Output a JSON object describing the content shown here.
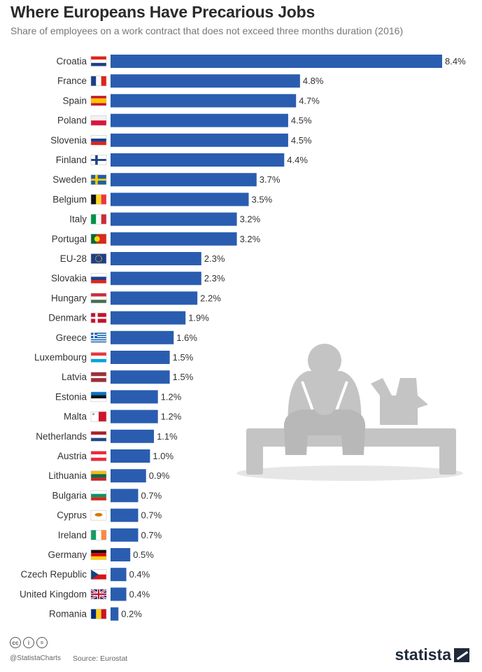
{
  "title": "Where Europeans Have Precarious Jobs",
  "subtitle": "Share of employees on a work contract that does not exceed three months duration (2016)",
  "footer": {
    "cc_icons": [
      "cc",
      "i",
      "="
    ],
    "handle": "@StatistaCharts",
    "source": "Source: Eurostat",
    "brand": "statista"
  },
  "colors": {
    "bar": "#2a5db0",
    "illustration": "#c9c9c9",
    "illustration_dark": "#b5b5b5"
  },
  "illustration": {
    "icon": "person-sitting-on-bench-with-box-icon"
  },
  "chart_data": {
    "type": "bar",
    "orientation": "horizontal",
    "categories": [
      "Croatia",
      "France",
      "Spain",
      "Poland",
      "Slovenia",
      "Finland",
      "Sweden",
      "Belgium",
      "Italy",
      "Portugal",
      "EU-28",
      "Slovakia",
      "Hungary",
      "Denmark",
      "Greece",
      "Luxembourg",
      "Latvia",
      "Estonia",
      "Malta",
      "Netherlands",
      "Austria",
      "Lithuania",
      "Bulgaria",
      "Cyprus",
      "Ireland",
      "Germany",
      "Czech Republic",
      "United Kingdom",
      "Romania"
    ],
    "values": [
      8.4,
      4.8,
      4.7,
      4.5,
      4.5,
      4.4,
      3.7,
      3.5,
      3.2,
      3.2,
      2.3,
      2.3,
      2.2,
      1.9,
      1.6,
      1.5,
      1.5,
      1.2,
      1.2,
      1.1,
      1.0,
      0.9,
      0.7,
      0.7,
      0.7,
      0.5,
      0.4,
      0.4,
      0.2
    ],
    "value_labels": [
      "8.4%",
      "4.8%",
      "4.7%",
      "4.5%",
      "4.5%",
      "4.4%",
      "3.7%",
      "3.5%",
      "3.2%",
      "3.2%",
      "2.3%",
      "2.3%",
      "2.2%",
      "1.9%",
      "1.6%",
      "1.5%",
      "1.5%",
      "1.2%",
      "1.2%",
      "1.1%",
      "1.0%",
      "0.9%",
      "0.7%",
      "0.7%",
      "0.7%",
      "0.5%",
      "0.4%",
      "0.4%",
      "0.2%"
    ],
    "flags": [
      "croatia-flag-icon",
      "france-flag-icon",
      "spain-flag-icon",
      "poland-flag-icon",
      "slovenia-flag-icon",
      "finland-flag-icon",
      "sweden-flag-icon",
      "belgium-flag-icon",
      "italy-flag-icon",
      "portugal-flag-icon",
      "eu-flag-icon",
      "slovakia-flag-icon",
      "hungary-flag-icon",
      "denmark-flag-icon",
      "greece-flag-icon",
      "luxembourg-flag-icon",
      "latvia-flag-icon",
      "estonia-flag-icon",
      "malta-flag-icon",
      "netherlands-flag-icon",
      "austria-flag-icon",
      "lithuania-flag-icon",
      "bulgaria-flag-icon",
      "cyprus-flag-icon",
      "ireland-flag-icon",
      "germany-flag-icon",
      "czech-republic-flag-icon",
      "united-kingdom-flag-icon",
      "romania-flag-icon"
    ],
    "xlim": [
      0,
      8.4
    ],
    "grid": false,
    "legend": "none"
  }
}
